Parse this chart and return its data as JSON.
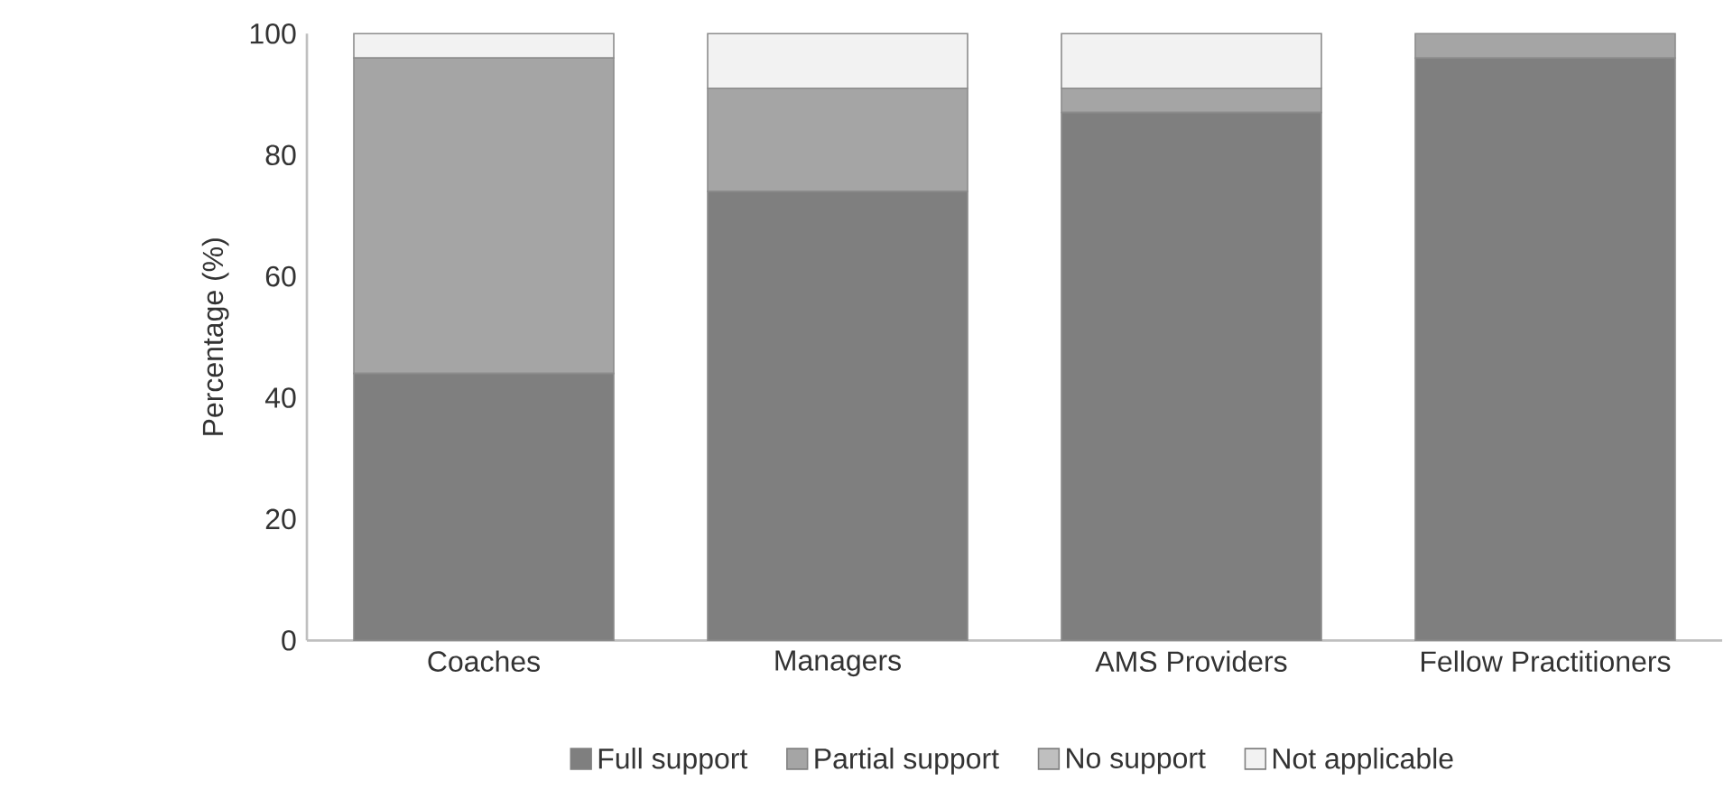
{
  "chart_data": {
    "type": "bar",
    "stacked": true,
    "ylabel": "Percentage (%)",
    "categories": [
      "Coaches",
      "Managers",
      "AMS Providers",
      "Fellow Practitioners"
    ],
    "ylim": [
      0,
      100
    ],
    "yticks": [
      0,
      20,
      40,
      60,
      80,
      100
    ],
    "legend": "bottom",
    "series": [
      {
        "name": "Full support",
        "color": "#7f7f7f",
        "values": [
          44,
          74,
          87,
          96
        ]
      },
      {
        "name": "Partial support",
        "color": "#a5a5a5",
        "values": [
          52,
          17,
          4,
          4
        ]
      },
      {
        "name": "No support",
        "color": "#bfbfbf",
        "values": [
          0,
          0,
          0,
          0
        ]
      },
      {
        "name": "Not applicable",
        "color": "#f2f2f2",
        "values": [
          4,
          9,
          9,
          0
        ]
      }
    ]
  }
}
